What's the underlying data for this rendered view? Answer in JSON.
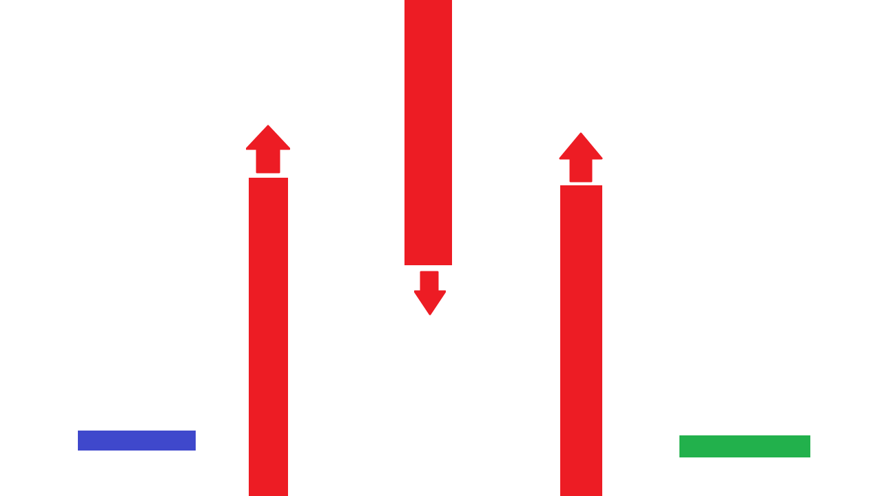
{
  "colors": {
    "background": "#ffffff",
    "hazard": "#ed1c24",
    "start_platform": "#3f48cc",
    "goal_platform": "#22b14c"
  },
  "elements": {
    "start_platform": {
      "color_key": "start_platform"
    },
    "goal_platform": {
      "color_key": "goal_platform"
    },
    "pillars": [
      {
        "id": "left",
        "motion": "up",
        "icon": "arrow-up-icon"
      },
      {
        "id": "center",
        "motion": "down",
        "icon": "arrow-down-icon"
      },
      {
        "id": "right",
        "motion": "up",
        "icon": "arrow-up-icon"
      }
    ]
  }
}
